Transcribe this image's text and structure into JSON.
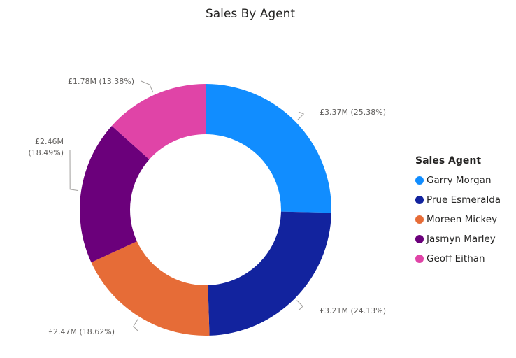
{
  "chart_data": {
    "type": "donut",
    "title": "Sales By Agent",
    "legend_title": "Sales Agent",
    "legend_position": "right",
    "value_unit": "£",
    "series": [
      {
        "name": "Garry Morgan",
        "value": 3.37,
        "percent": 25.38,
        "color": "#118dff",
        "label": "£3.37M (25.38%)",
        "label_lines": [
          "£3.37M (25.38%)"
        ]
      },
      {
        "name": "Prue Esmeralda",
        "value": 3.21,
        "percent": 24.13,
        "color": "#12239e",
        "label": "£3.21M (24.13%)",
        "label_lines": [
          "£3.21M (24.13%)"
        ]
      },
      {
        "name": "Moreen Mickey",
        "value": 2.47,
        "percent": 18.62,
        "color": "#e66c37",
        "label": "£2.47M (18.62%)",
        "label_lines": [
          "£2.47M (18.62%)"
        ]
      },
      {
        "name": "Jasmyn Marley",
        "value": 2.46,
        "percent": 18.49,
        "color": "#6b007b",
        "label": "£2.46M (18.49%)",
        "label_lines": [
          "£2.46M",
          "(18.49%)"
        ]
      },
      {
        "name": "Geoff Eithan",
        "value": 1.78,
        "percent": 13.38,
        "color": "#e044a7",
        "label": "£1.78M (13.38%)",
        "label_lines": [
          "£1.78M (13.38%)"
        ]
      }
    ]
  }
}
